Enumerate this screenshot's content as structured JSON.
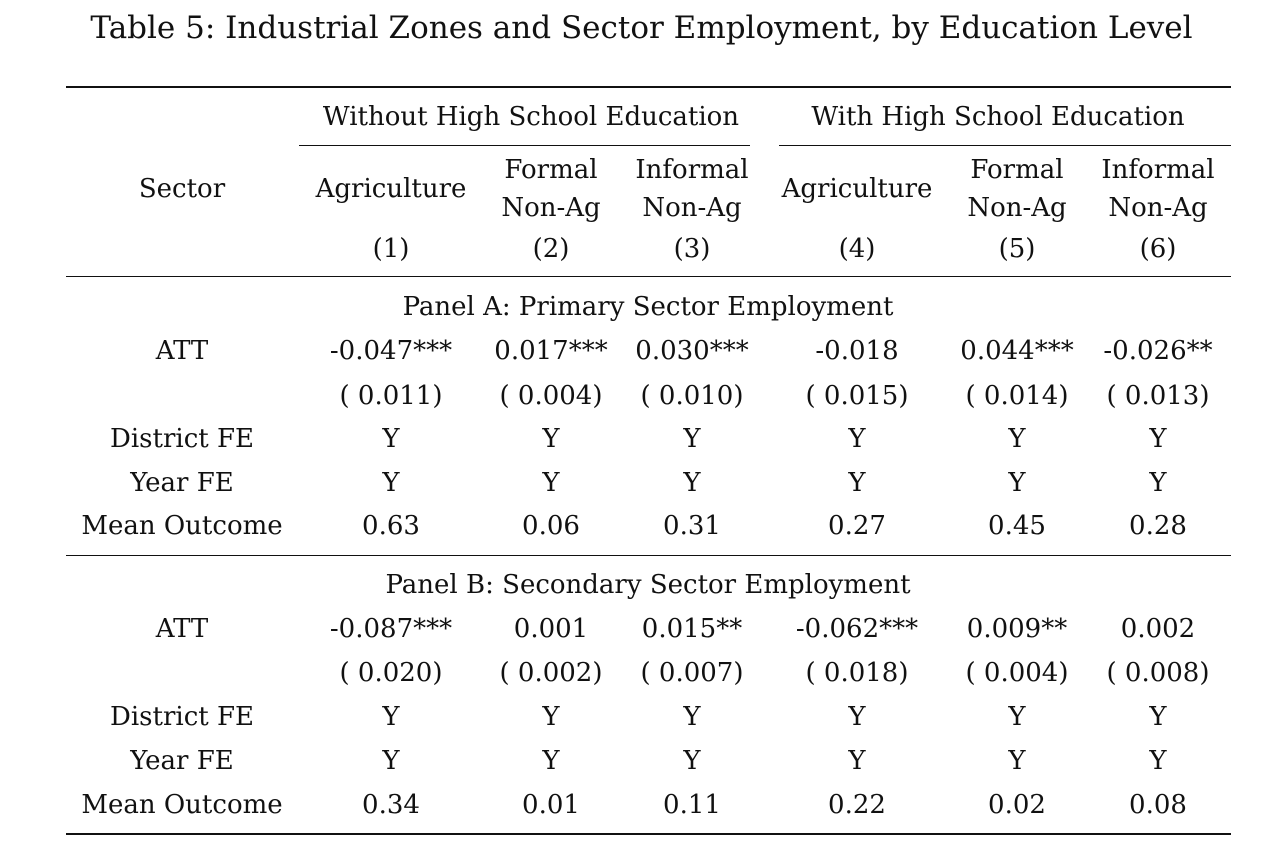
{
  "table": {
    "title": "Table 5: Industrial Zones and Sector Employment, by Education Level",
    "stub_header": "Sector",
    "groups": [
      {
        "label": "Without High School Education"
      },
      {
        "label": "With High School Education"
      }
    ],
    "columns": [
      {
        "line1": "Agriculture",
        "line2": "",
        "num": "(1)"
      },
      {
        "line1": "Formal",
        "line2": "Non-Ag",
        "num": "(2)"
      },
      {
        "line1": "Informal",
        "line2": "Non-Ag",
        "num": "(3)"
      },
      {
        "line1": "Agriculture",
        "line2": "",
        "num": "(4)"
      },
      {
        "line1": "Formal",
        "line2": "Non-Ag",
        "num": "(5)"
      },
      {
        "line1": "Informal",
        "line2": "Non-Ag",
        "num": "(6)"
      }
    ],
    "panels": [
      {
        "title": "Panel A: Primary Sector Employment",
        "rows": [
          {
            "label": "ATT",
            "values": [
              "-0.047***",
              "0.017***",
              "0.030***",
              "-0.018",
              "0.044***",
              "-0.026**"
            ]
          },
          {
            "label": "",
            "values": [
              "( 0.011)",
              "( 0.004)",
              "( 0.010)",
              "( 0.015)",
              "( 0.014)",
              "( 0.013)"
            ]
          },
          {
            "label": "District FE",
            "values": [
              "Y",
              "Y",
              "Y",
              "Y",
              "Y",
              "Y"
            ]
          },
          {
            "label": "Year FE",
            "values": [
              "Y",
              "Y",
              "Y",
              "Y",
              "Y",
              "Y"
            ]
          },
          {
            "label": "Mean Outcome",
            "values": [
              "0.63",
              "0.06",
              "0.31",
              "0.27",
              "0.45",
              "0.28"
            ]
          }
        ]
      },
      {
        "title": "Panel B: Secondary Sector Employment",
        "rows": [
          {
            "label": "ATT",
            "values": [
              "-0.087***",
              "0.001",
              "0.015**",
              "-0.062***",
              "0.009**",
              "0.002"
            ]
          },
          {
            "label": "",
            "values": [
              "( 0.020)",
              "( 0.002)",
              "( 0.007)",
              "( 0.018)",
              "( 0.004)",
              "( 0.008)"
            ]
          },
          {
            "label": "District FE",
            "values": [
              "Y",
              "Y",
              "Y",
              "Y",
              "Y",
              "Y"
            ]
          },
          {
            "label": "Year FE",
            "values": [
              "Y",
              "Y",
              "Y",
              "Y",
              "Y",
              "Y"
            ]
          },
          {
            "label": "Mean Outcome",
            "values": [
              "0.34",
              "0.01",
              "0.11",
              "0.22",
              "0.02",
              "0.08"
            ]
          }
        ]
      }
    ]
  }
}
